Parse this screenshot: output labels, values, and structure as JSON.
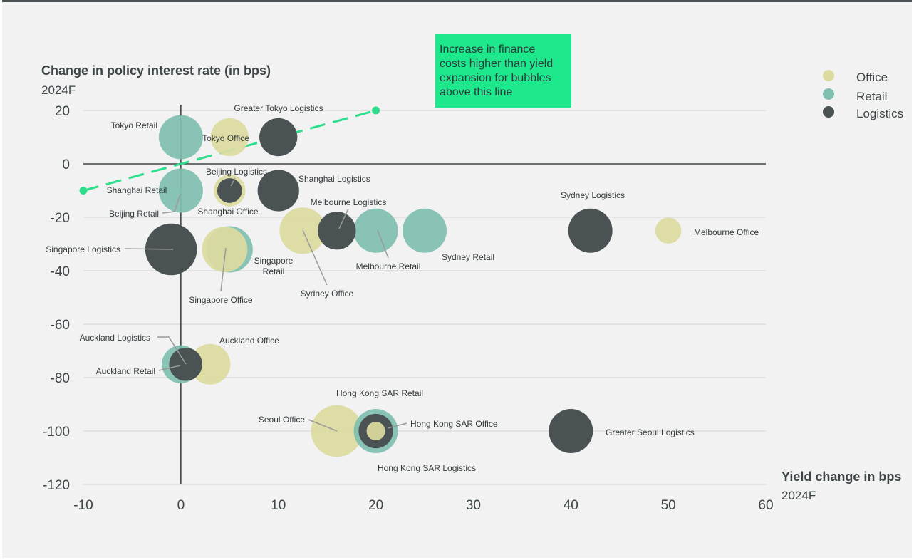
{
  "chart_data": {
    "type": "scatter",
    "subtype": "bubble",
    "ylabel": "Change in policy interest rate (in bps)",
    "ylabel_sub": "2024F",
    "xlabel": "Yield change in bps",
    "xlabel_sub": "2024F",
    "xlim": [
      -10,
      60
    ],
    "ylim": [
      -120,
      20
    ],
    "xticks": [
      "-10",
      "0",
      "10",
      "20",
      "30",
      "40",
      "50",
      "60"
    ],
    "yticks": [
      "20",
      "0",
      "-20",
      "-40",
      "-60",
      "-80",
      "-100",
      "-120"
    ],
    "grid": "horizontal",
    "legend_position": "top-right",
    "legend": [
      {
        "name": "Office",
        "color": "#dcdb9f"
      },
      {
        "name": "Retail",
        "color": "#7fbfb0"
      },
      {
        "name": "Logistics",
        "color": "#4a5254"
      }
    ],
    "callout": {
      "lines": [
        "Increase in finance",
        "costs higher than yield",
        "expansion for bubbles",
        "above this line"
      ],
      "color": "#1de88c"
    },
    "threshold_line": {
      "x": [
        -10,
        20
      ],
      "y": [
        -10,
        20
      ],
      "color": "#2ede8c"
    },
    "points": [
      {
        "label": "Tokyo Retail",
        "series": "Retail",
        "x": 0,
        "y": 10,
        "size": 1.0
      },
      {
        "label": "Tokyo Office",
        "series": "Office",
        "x": 5,
        "y": 10,
        "size": 0.86
      },
      {
        "label": "Greater Tokyo Logistics",
        "series": "Logistics",
        "x": 10,
        "y": 10,
        "size": 0.86
      },
      {
        "label": "Shanghai Retail",
        "series": "Retail",
        "x": 0,
        "y": -10,
        "size": 1.0
      },
      {
        "label": "Beijing Retail",
        "series": "Retail",
        "x": 0,
        "y": -10,
        "size": 0.1
      },
      {
        "label": "Shanghai Office",
        "series": "Office",
        "x": 5,
        "y": -10,
        "size": 0.72
      },
      {
        "label": "Beijing Logistics",
        "series": "Logistics",
        "x": 5,
        "y": -10,
        "size": 0.56
      },
      {
        "label": "Shanghai Logistics",
        "series": "Logistics",
        "x": 10,
        "y": -10,
        "size": 0.94
      },
      {
        "label": "Melbourne Logistics",
        "series": "Logistics",
        "x": 16,
        "y": -25,
        "size": 0.86
      },
      {
        "label": "Sydney Office",
        "series": "Office",
        "x": 12.5,
        "y": -25,
        "size": 1.05
      },
      {
        "label": "Melbourne Retail",
        "series": "Retail",
        "x": 20,
        "y": -25,
        "size": 1.0
      },
      {
        "label": "Sydney Retail",
        "series": "Retail",
        "x": 25,
        "y": -25,
        "size": 1.0
      },
      {
        "label": "Sydney Logistics",
        "series": "Logistics",
        "x": 42,
        "y": -25,
        "size": 1.0
      },
      {
        "label": "Melbourne Office",
        "series": "Office",
        "x": 50,
        "y": -25,
        "size": 0.59
      },
      {
        "label": "Singapore Logistics",
        "series": "Logistics",
        "x": -1,
        "y": -32,
        "size": 1.17
      },
      {
        "label": "Singapore Office",
        "series": "Office",
        "x": 4.5,
        "y": -32,
        "size": 1.03
      },
      {
        "label": "Singapore Retail",
        "series": "Retail",
        "x": 5,
        "y": -32,
        "size": 1.05
      },
      {
        "label": "Auckland Office",
        "series": "Office",
        "x": 3,
        "y": -75,
        "size": 0.92
      },
      {
        "label": "Auckland Retail",
        "series": "Retail",
        "x": 0,
        "y": -75,
        "size": 0.86
      },
      {
        "label": "Auckland Logistics",
        "series": "Logistics",
        "x": 0.5,
        "y": -75,
        "size": 0.75
      },
      {
        "label": "Seoul Office",
        "series": "Office",
        "x": 16,
        "y": -100,
        "size": 1.17
      },
      {
        "label": "Hong Kong SAR Retail",
        "series": "Retail",
        "x": 20,
        "y": -100,
        "size": 1.0
      },
      {
        "label": "Hong Kong SAR Logistics",
        "series": "Logistics",
        "x": 20,
        "y": -100,
        "size": 0.78
      },
      {
        "label": "Hong Kong SAR Office",
        "series": "Office",
        "x": 20,
        "y": -100,
        "size": 0.42
      },
      {
        "label": "Greater Seoul Logistics",
        "series": "Logistics",
        "x": 40,
        "y": -100,
        "size": 1.0
      }
    ]
  }
}
